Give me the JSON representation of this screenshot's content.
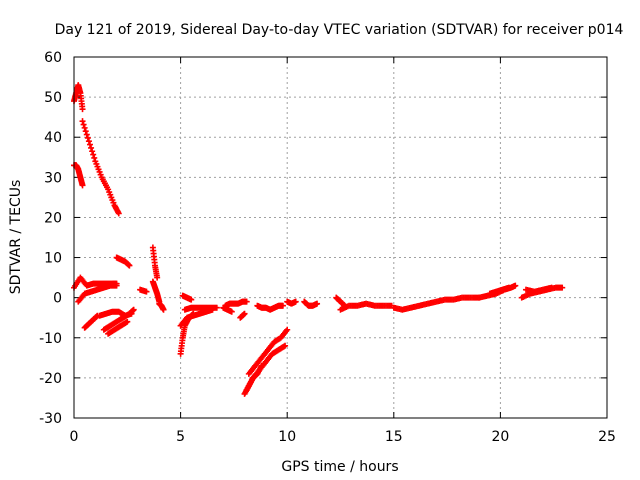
{
  "chart_data": {
    "type": "scatter",
    "title": "Day 121 of 2019, Sidereal Day-to-day VTEC variation (SDTVAR) for receiver p014",
    "xlabel": "GPS time / hours",
    "ylabel": "SDTVAR / TECUs",
    "xlim": [
      0,
      25
    ],
    "ylim": [
      -30,
      60
    ],
    "xticks": [
      0,
      5,
      10,
      15,
      20,
      25
    ],
    "yticks": [
      -30,
      -20,
      -10,
      0,
      10,
      20,
      30,
      40,
      50,
      60
    ],
    "grid": true,
    "marker": "+",
    "color": "#ff0000",
    "segments": [
      {
        "x": [
          0.0,
          0.1,
          0.2,
          0.3,
          0.4
        ],
        "y": [
          49,
          51,
          53,
          51,
          47
        ]
      },
      {
        "x": [
          0.0,
          0.1,
          0.2,
          0.3,
          0.4
        ],
        "y": [
          33,
          33,
          32,
          30,
          28
        ]
      },
      {
        "x": [
          0.4,
          0.7,
          1.0,
          1.3,
          1.6,
          1.9,
          2.1
        ],
        "y": [
          44,
          39,
          34,
          30,
          27,
          23,
          21
        ]
      },
      {
        "x": [
          2.0,
          2.2,
          2.4,
          2.6
        ],
        "y": [
          10,
          9.5,
          9,
          8
        ]
      },
      {
        "x": [
          0.0,
          0.3,
          0.6,
          0.9,
          1.2,
          1.5,
          1.8,
          2.0
        ],
        "y": [
          2.5,
          5,
          3,
          3.5,
          3.5,
          3.5,
          3.5,
          3.5
        ]
      },
      {
        "x": [
          0.2,
          0.5,
          0.8,
          1.1,
          1.4,
          1.7,
          2.0
        ],
        "y": [
          -1,
          1,
          1.5,
          2,
          2.5,
          3,
          3
        ]
      },
      {
        "x": [
          0.5,
          0.7,
          0.9,
          1.1
        ],
        "y": [
          -7.5,
          -6.5,
          -5.5,
          -4.5
        ]
      },
      {
        "x": [
          1.2,
          1.5,
          1.8,
          2.1,
          2.4,
          2.7
        ],
        "y": [
          -4.5,
          -4,
          -3.5,
          -3.5,
          -4.5,
          -4
        ]
      },
      {
        "x": [
          1.4,
          1.7,
          2.0,
          2.3,
          2.6,
          2.8
        ],
        "y": [
          -8,
          -7,
          -6,
          -5,
          -4,
          -3
        ]
      },
      {
        "x": [
          1.6,
          1.9,
          2.2,
          2.5
        ],
        "y": [
          -9,
          -8,
          -7,
          -6
        ]
      },
      {
        "x": [
          3.1,
          3.4
        ],
        "y": [
          2,
          1.5
        ]
      },
      {
        "x": [
          3.7,
          3.8,
          3.9
        ],
        "y": [
          12.5,
          8,
          5
        ]
      },
      {
        "x": [
          3.7,
          3.8,
          3.9,
          4.0
        ],
        "y": [
          4,
          2.5,
          1,
          -1
        ]
      },
      {
        "x": [
          4.0,
          4.1,
          4.2
        ],
        "y": [
          -1.5,
          -2,
          -3
        ]
      },
      {
        "x": [
          5.0,
          5.1,
          5.2,
          5.4,
          5.6
        ],
        "y": [
          -14,
          -10,
          -7,
          -5,
          -4
        ]
      },
      {
        "x": [
          5.0,
          5.3,
          5.6,
          5.9,
          6.2,
          6.5
        ],
        "y": [
          -7,
          -5,
          -4.5,
          -4,
          -3.5,
          -3
        ]
      },
      {
        "x": [
          5.2,
          5.5,
          5.8,
          6.1,
          6.4,
          6.7
        ],
        "y": [
          -3,
          -2.5,
          -2.5,
          -2.5,
          -2.5,
          -2.5
        ]
      },
      {
        "x": [
          5.1,
          5.3,
          5.5
        ],
        "y": [
          0.5,
          0,
          -0.5
        ]
      },
      {
        "x": [
          7.1,
          7.3,
          7.5,
          7.7,
          7.9,
          8.1
        ],
        "y": [
          -2,
          -1.5,
          -1.5,
          -1.5,
          -1,
          -1
        ]
      },
      {
        "x": [
          7.0,
          7.2,
          7.4
        ],
        "y": [
          -2.5,
          -3,
          -3.5
        ]
      },
      {
        "x": [
          7.8,
          8.0
        ],
        "y": [
          -5,
          -4
        ]
      },
      {
        "x": [
          8.6,
          8.8,
          9.0,
          9.2,
          9.4,
          9.6,
          9.8
        ],
        "y": [
          -2,
          -2.5,
          -2.5,
          -3,
          -2.5,
          -2,
          -2
        ]
      },
      {
        "x": [
          8.2,
          8.5,
          8.8,
          9.1,
          9.4,
          9.7,
          10.0
        ],
        "y": [
          -19,
          -17,
          -15,
          -13,
          -11,
          -10,
          -8
        ]
      },
      {
        "x": [
          8.1,
          8.4,
          8.7,
          9.0,
          9.3,
          9.6,
          9.9
        ],
        "y": [
          -23,
          -20,
          -18,
          -16,
          -14,
          -13,
          -12
        ]
      },
      {
        "x": [
          8.0,
          8.2,
          8.4,
          8.6,
          8.8
        ],
        "y": [
          -24,
          -22,
          -20,
          -19,
          -17
        ]
      },
      {
        "x": [
          10.0,
          10.2,
          10.4
        ],
        "y": [
          -1,
          -1.5,
          -1
        ]
      },
      {
        "x": [
          10.8,
          11.0,
          11.2,
          11.4
        ],
        "y": [
          -1,
          -2,
          -2,
          -1.5
        ]
      },
      {
        "x": [
          12.3,
          12.5,
          12.7
        ],
        "y": [
          0,
          -1,
          -2
        ]
      },
      {
        "x": [
          12.5,
          12.9,
          13.3,
          13.7,
          14.1,
          14.5,
          14.9
        ],
        "y": [
          -3,
          -2,
          -2,
          -1.5,
          -2,
          -2,
          -2
        ]
      },
      {
        "x": [
          15.0,
          15.4,
          15.8,
          16.2,
          16.6,
          17.0,
          17.4,
          17.8,
          18.2,
          18.6,
          19.0
        ],
        "y": [
          -2.5,
          -3,
          -2.5,
          -2,
          -1.5,
          -1,
          -0.5,
          -0.5,
          0,
          0,
          0
        ]
      },
      {
        "x": [
          19.0,
          19.4,
          19.8,
          20.2,
          20.5,
          20.7
        ],
        "y": [
          0,
          0.5,
          1,
          2,
          2.5,
          3
        ]
      },
      {
        "x": [
          19.5,
          19.8,
          20.1,
          20.4
        ],
        "y": [
          1,
          1.5,
          2,
          2.5
        ]
      },
      {
        "x": [
          21.0,
          21.4,
          21.8,
          22.2,
          22.6,
          22.9
        ],
        "y": [
          0,
          1,
          1.5,
          2,
          2.5,
          2.5
        ]
      },
      {
        "x": [
          21.2,
          21.6,
          22.0,
          22.4
        ],
        "y": [
          2,
          1.5,
          2,
          2.5
        ]
      }
    ]
  }
}
